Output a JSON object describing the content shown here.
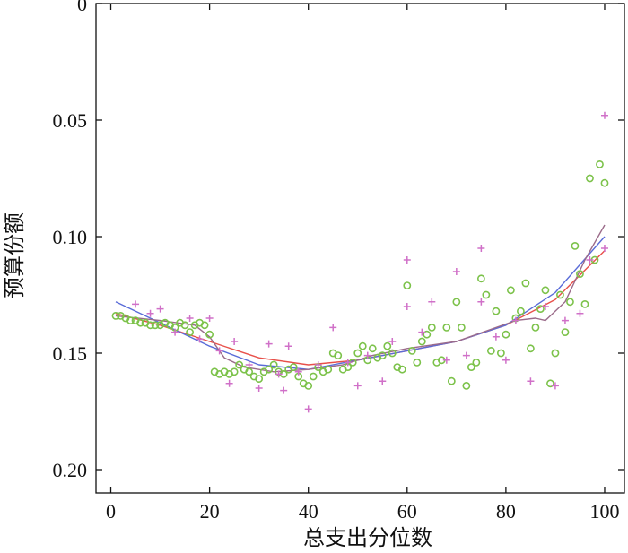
{
  "chart_data": {
    "type": "scatter",
    "xlabel": "总支出分位数",
    "ylabel": "预算份额",
    "xlim": [
      -3,
      104
    ],
    "ylim": [
      0.0,
      0.21
    ],
    "y_inverted": true,
    "xticks": [
      0,
      20,
      40,
      60,
      80,
      100
    ],
    "xtick_labels": [
      "0",
      "20",
      "40",
      "60",
      "80",
      "100"
    ],
    "yticks": [
      0.0,
      0.05,
      0.1,
      0.15,
      0.2
    ],
    "ytick_labels": [
      "0",
      "0.05",
      "0.10",
      "0.15",
      "0.20"
    ],
    "grid": false,
    "legend": "none",
    "series": [
      {
        "marker": "circle",
        "color": "#7cc24a",
        "points": [
          [
            1,
            0.134
          ],
          [
            2,
            0.134
          ],
          [
            3,
            0.135
          ],
          [
            4,
            0.136
          ],
          [
            5,
            0.136
          ],
          [
            6,
            0.137
          ],
          [
            7,
            0.137
          ],
          [
            8,
            0.138
          ],
          [
            9,
            0.138
          ],
          [
            10,
            0.138
          ],
          [
            11,
            0.137
          ],
          [
            12,
            0.138
          ],
          [
            13,
            0.139
          ],
          [
            14,
            0.137
          ],
          [
            15,
            0.138
          ],
          [
            16,
            0.141
          ],
          [
            17,
            0.138
          ],
          [
            18,
            0.137
          ],
          [
            19,
            0.138
          ],
          [
            20,
            0.142
          ],
          [
            21,
            0.158
          ],
          [
            22,
            0.159
          ],
          [
            23,
            0.158
          ],
          [
            24,
            0.159
          ],
          [
            25,
            0.158
          ],
          [
            26,
            0.155
          ],
          [
            27,
            0.157
          ],
          [
            28,
            0.158
          ],
          [
            29,
            0.16
          ],
          [
            30,
            0.161
          ],
          [
            31,
            0.158
          ],
          [
            32,
            0.157
          ],
          [
            33,
            0.155
          ],
          [
            34,
            0.158
          ],
          [
            35,
            0.159
          ],
          [
            36,
            0.157
          ],
          [
            37,
            0.156
          ],
          [
            38,
            0.16
          ],
          [
            39,
            0.163
          ],
          [
            40,
            0.164
          ],
          [
            41,
            0.16
          ],
          [
            42,
            0.156
          ],
          [
            43,
            0.158
          ],
          [
            44,
            0.157
          ],
          [
            45,
            0.15
          ],
          [
            46,
            0.151
          ],
          [
            47,
            0.157
          ],
          [
            48,
            0.156
          ],
          [
            49,
            0.154
          ],
          [
            50,
            0.15
          ],
          [
            51,
            0.147
          ],
          [
            52,
            0.153
          ],
          [
            53,
            0.148
          ],
          [
            54,
            0.152
          ],
          [
            55,
            0.151
          ],
          [
            56,
            0.147
          ],
          [
            57,
            0.15
          ],
          [
            58,
            0.156
          ],
          [
            59,
            0.157
          ],
          [
            60,
            0.121
          ],
          [
            61,
            0.149
          ],
          [
            62,
            0.154
          ],
          [
            63,
            0.145
          ],
          [
            64,
            0.142
          ],
          [
            65,
            0.139
          ],
          [
            66,
            0.154
          ],
          [
            67,
            0.153
          ],
          [
            68,
            0.139
          ],
          [
            69,
            0.162
          ],
          [
            70,
            0.128
          ],
          [
            71,
            0.139
          ],
          [
            72,
            0.164
          ],
          [
            73,
            0.156
          ],
          [
            74,
            0.154
          ],
          [
            75,
            0.118
          ],
          [
            76,
            0.125
          ],
          [
            77,
            0.149
          ],
          [
            78,
            0.132
          ],
          [
            79,
            0.15
          ],
          [
            80,
            0.142
          ],
          [
            81,
            0.123
          ],
          [
            82,
            0.135
          ],
          [
            83,
            0.132
          ],
          [
            84,
            0.12
          ],
          [
            85,
            0.148
          ],
          [
            86,
            0.139
          ],
          [
            87,
            0.131
          ],
          [
            88,
            0.123
          ],
          [
            89,
            0.163
          ],
          [
            90,
            0.15
          ],
          [
            91,
            0.125
          ],
          [
            92,
            0.141
          ],
          [
            93,
            0.128
          ],
          [
            94,
            0.104
          ],
          [
            95,
            0.116
          ],
          [
            96,
            0.129
          ],
          [
            97,
            0.075
          ],
          [
            98,
            0.11
          ],
          [
            99,
            0.069
          ],
          [
            100,
            0.077
          ]
        ]
      },
      {
        "marker": "plus",
        "color": "#d070c8",
        "points": [
          [
            5,
            0.129
          ],
          [
            8,
            0.133
          ],
          [
            10,
            0.131
          ],
          [
            13,
            0.141
          ],
          [
            16,
            0.135
          ],
          [
            18,
            0.144
          ],
          [
            20,
            0.135
          ],
          [
            22,
            0.149
          ],
          [
            24,
            0.163
          ],
          [
            25,
            0.145
          ],
          [
            28,
            0.155
          ],
          [
            30,
            0.165
          ],
          [
            32,
            0.146
          ],
          [
            34,
            0.159
          ],
          [
            35,
            0.166
          ],
          [
            36,
            0.147
          ],
          [
            38,
            0.158
          ],
          [
            40,
            0.174
          ],
          [
            42,
            0.155
          ],
          [
            45,
            0.139
          ],
          [
            48,
            0.154
          ],
          [
            50,
            0.164
          ],
          [
            52,
            0.151
          ],
          [
            55,
            0.162
          ],
          [
            57,
            0.145
          ],
          [
            60,
            0.11
          ],
          [
            60,
            0.13
          ],
          [
            63,
            0.141
          ],
          [
            65,
            0.128
          ],
          [
            68,
            0.153
          ],
          [
            70,
            0.115
          ],
          [
            72,
            0.151
          ],
          [
            75,
            0.105
          ],
          [
            75,
            0.128
          ],
          [
            78,
            0.143
          ],
          [
            80,
            0.153
          ],
          [
            82,
            0.136
          ],
          [
            85,
            0.162
          ],
          [
            88,
            0.13
          ],
          [
            90,
            0.164
          ],
          [
            92,
            0.136
          ],
          [
            95,
            0.133
          ],
          [
            97,
            0.11
          ],
          [
            100,
            0.048
          ],
          [
            100,
            0.105
          ]
        ]
      }
    ],
    "curves": [
      {
        "color": "#e8504a",
        "points": [
          [
            1,
            0.133
          ],
          [
            10,
            0.138
          ],
          [
            20,
            0.145
          ],
          [
            30,
            0.152
          ],
          [
            40,
            0.155
          ],
          [
            50,
            0.153
          ],
          [
            60,
            0.149
          ],
          [
            70,
            0.145
          ],
          [
            80,
            0.138
          ],
          [
            90,
            0.127
          ],
          [
            100,
            0.106
          ]
        ]
      },
      {
        "color": "#5a6cd8",
        "points": [
          [
            1,
            0.128
          ],
          [
            10,
            0.137
          ],
          [
            20,
            0.147
          ],
          [
            30,
            0.155
          ],
          [
            40,
            0.157
          ],
          [
            50,
            0.153
          ],
          [
            60,
            0.149
          ],
          [
            70,
            0.145
          ],
          [
            80,
            0.138
          ],
          [
            90,
            0.124
          ],
          [
            100,
            0.1
          ]
        ]
      },
      {
        "color": "#9b6b8a",
        "points": [
          [
            1,
            0.134
          ],
          [
            10,
            0.136
          ],
          [
            17,
            0.138
          ],
          [
            20,
            0.143
          ],
          [
            23,
            0.152
          ],
          [
            27,
            0.156
          ],
          [
            33,
            0.158
          ],
          [
            40,
            0.157
          ],
          [
            47,
            0.155
          ],
          [
            53,
            0.151
          ],
          [
            60,
            0.148
          ],
          [
            70,
            0.145
          ],
          [
            78,
            0.139
          ],
          [
            82,
            0.136
          ],
          [
            86,
            0.135
          ],
          [
            88,
            0.136
          ],
          [
            92,
            0.128
          ],
          [
            96,
            0.11
          ],
          [
            100,
            0.095
          ]
        ]
      }
    ]
  }
}
